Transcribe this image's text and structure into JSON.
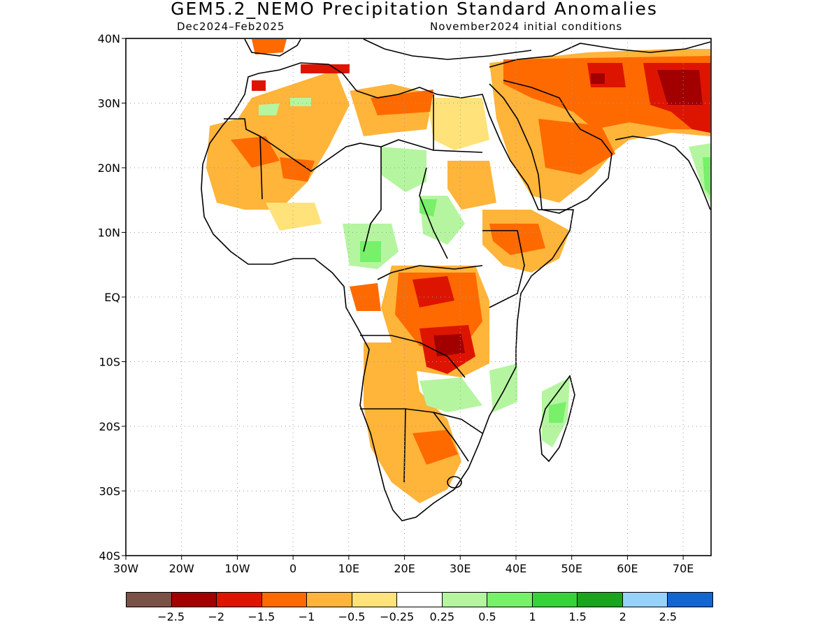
{
  "title": "GEM5.2_NEMO Precipitation Standard Anomalies",
  "subtitle_left": "Dec2024–Feb2025",
  "subtitle_right": "November2024 initial conditions",
  "map": {
    "lat_labels": [
      "40N",
      "30N",
      "20N",
      "10N",
      "EQ",
      "10S",
      "20S",
      "30S",
      "40S"
    ],
    "lon_labels": [
      "30W",
      "20W",
      "10W",
      "0",
      "10E",
      "20E",
      "30E",
      "40E",
      "50E",
      "60E",
      "70E"
    ],
    "lat_range": [
      -40,
      40
    ],
    "lon_range": [
      -30,
      75
    ],
    "gridlines": "dotted",
    "region": "Africa and Middle East"
  },
  "colorbar": {
    "colors": [
      "#7a5047",
      "#a20000",
      "#dd1500",
      "#ff6a00",
      "#ffb43a",
      "#ffe27a",
      "#ffffff",
      "#b5f5a0",
      "#78f06a",
      "#36d23a",
      "#18a41e",
      "#96d2fa",
      "#1464d2"
    ],
    "labels": [
      "−2.5",
      "−2",
      "−1.5",
      "−1",
      "−0.5",
      "−0.25",
      "0.25",
      "0.5",
      "1",
      "1.5",
      "2",
      "2.5"
    ]
  },
  "colors": {
    "land_outline": "#000000",
    "grid": "#9a9a9a"
  }
}
